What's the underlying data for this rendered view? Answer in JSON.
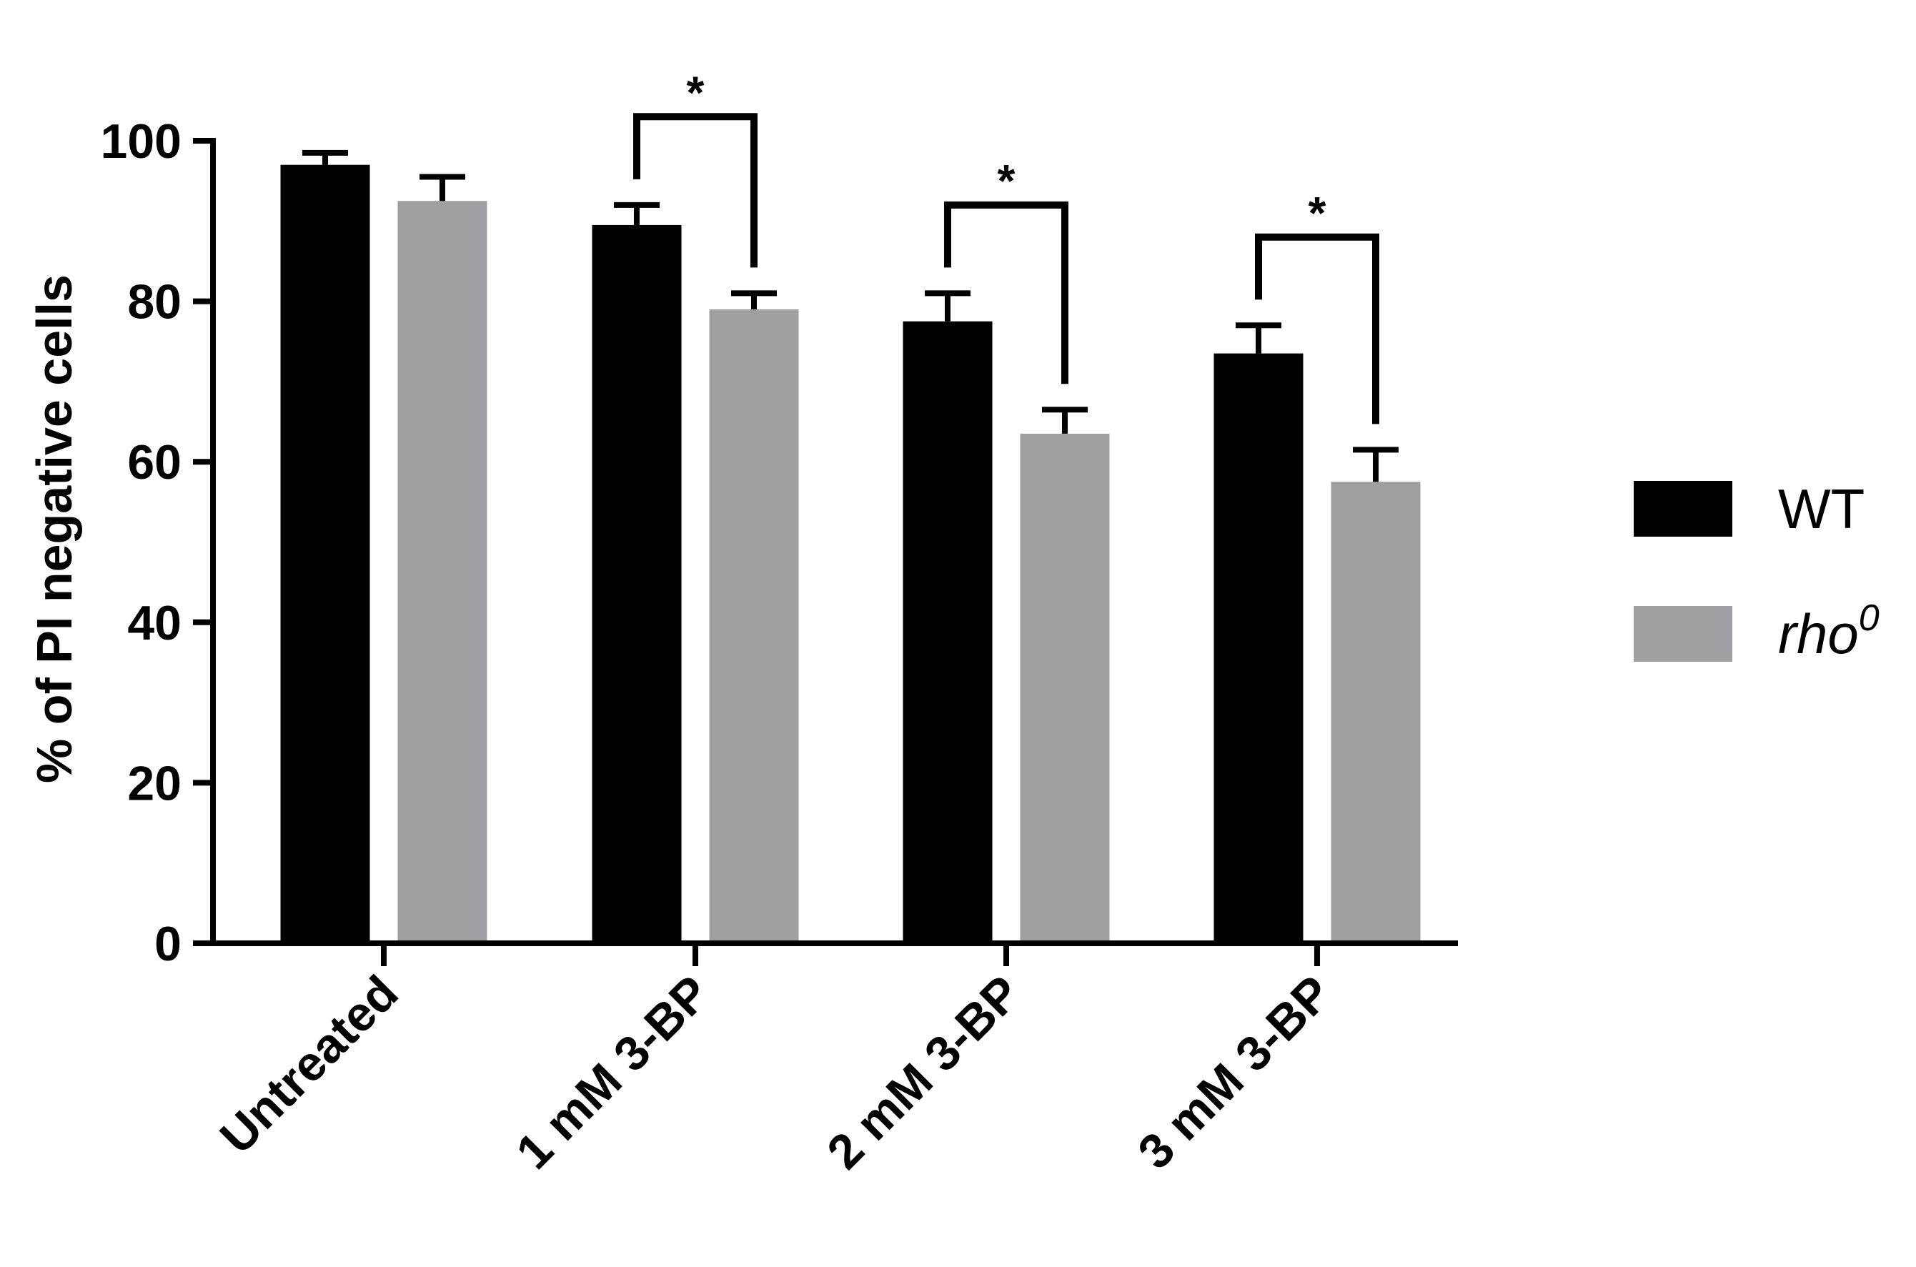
{
  "chart_data": {
    "type": "bar",
    "ylabel": "% of PI negative cells",
    "xlabel": "",
    "ylim": [
      0,
      100
    ],
    "yticks": [
      0,
      20,
      40,
      60,
      80,
      100
    ],
    "categories": [
      "Untreated",
      "1 mM 3-BP",
      "2 mM 3-BP",
      "3 mM 3-BP"
    ],
    "series": [
      {
        "name": "WT",
        "color": "#000000",
        "values": [
          97,
          89.5,
          77.5,
          73.5
        ],
        "errors": [
          1.5,
          2.5,
          3.5,
          3.5
        ]
      },
      {
        "name": "rho",
        "name_superscript": "0",
        "color": "#a0a0a3",
        "values": [
          92.5,
          79,
          63.5,
          57.5
        ],
        "errors": [
          3,
          2,
          3,
          4
        ]
      }
    ],
    "significance": [
      {
        "category": "1 mM 3-BP",
        "label": "*"
      },
      {
        "category": "2 mM 3-BP",
        "label": "*"
      },
      {
        "category": "3 mM 3-BP",
        "label": "*"
      }
    ],
    "legend_position": "right",
    "grid": false
  }
}
